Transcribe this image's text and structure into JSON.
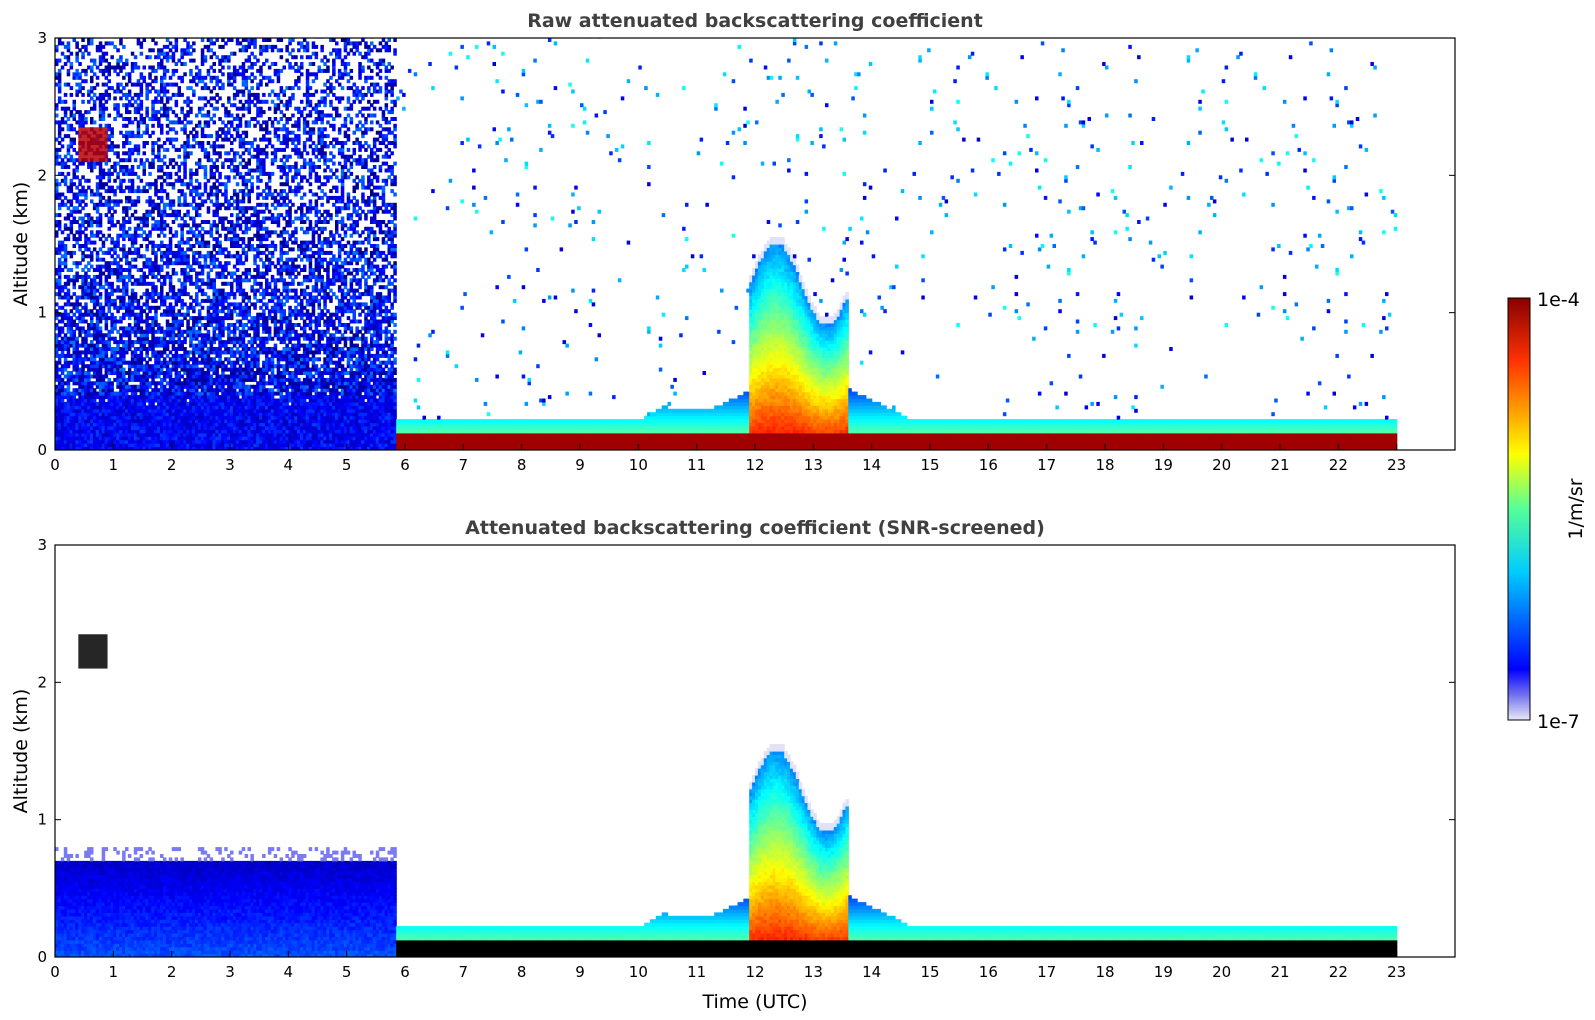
{
  "chart_data": [
    {
      "type": "heatmap",
      "title": "Raw attenuated backscattering coefficient",
      "xlabel": "",
      "ylabel": "Altitude (km)",
      "xlim": [
        0,
        24
      ],
      "ylim": [
        0,
        3
      ],
      "x_ticks": [
        "0",
        "1",
        "2",
        "3",
        "4",
        "5",
        "6",
        "7",
        "8",
        "9",
        "10",
        "11",
        "12",
        "13",
        "14",
        "15",
        "16",
        "17",
        "18",
        "19",
        "20",
        "21",
        "22",
        "23"
      ],
      "y_ticks": [
        "0",
        "1",
        "2",
        "3"
      ],
      "grid": false,
      "screened": false,
      "features": [
        {
          "x": [
            0,
            5.8
          ],
          "y": [
            0,
            3.0
          ],
          "level": 0.3,
          "note": "noisy pre-dawn signal"
        },
        {
          "x": [
            5.8,
            23
          ],
          "y": [
            0,
            0.12
          ],
          "level": 0.98
        },
        {
          "x": [
            11.9,
            13.6
          ],
          "y": [
            0,
            1.7
          ],
          "level": 0.6
        },
        {
          "x": [
            0.4,
            0.9
          ],
          "y": [
            2.1,
            2.35
          ],
          "level": 0.95
        }
      ]
    },
    {
      "type": "heatmap",
      "title": "Attenuated backscattering coefficient (SNR-screened)",
      "xlabel": "Time (UTC)",
      "ylabel": "Altitude (km)",
      "xlim": [
        0,
        24
      ],
      "ylim": [
        0,
        3
      ],
      "x_ticks": [
        "0",
        "1",
        "2",
        "3",
        "4",
        "5",
        "6",
        "7",
        "8",
        "9",
        "10",
        "11",
        "12",
        "13",
        "14",
        "15",
        "16",
        "17",
        "18",
        "19",
        "20",
        "21",
        "22",
        "23"
      ],
      "y_ticks": [
        "0",
        "1",
        "2",
        "3"
      ],
      "grid": false,
      "screened": true,
      "features": [
        {
          "x": [
            0,
            5.8
          ],
          "y": [
            0,
            0.75
          ],
          "level": 0.25
        },
        {
          "x": [
            5.8,
            23
          ],
          "y": [
            0,
            0.12
          ],
          "level": 1.0,
          "note": "saturated, shown black"
        },
        {
          "x": [
            11.9,
            13.6
          ],
          "y": [
            0,
            1.7
          ],
          "level": 0.6
        },
        {
          "x": [
            0.4,
            0.9
          ],
          "y": [
            2.1,
            2.35
          ],
          "level": 1.0
        }
      ]
    }
  ],
  "colorbar": {
    "label": "1/m/sr",
    "max_label": "1e-4",
    "min_label": "1e-7",
    "scale": "log",
    "colormap": "jet",
    "range": [
      1e-07,
      0.0001
    ],
    "saturated_color": "#000000"
  }
}
